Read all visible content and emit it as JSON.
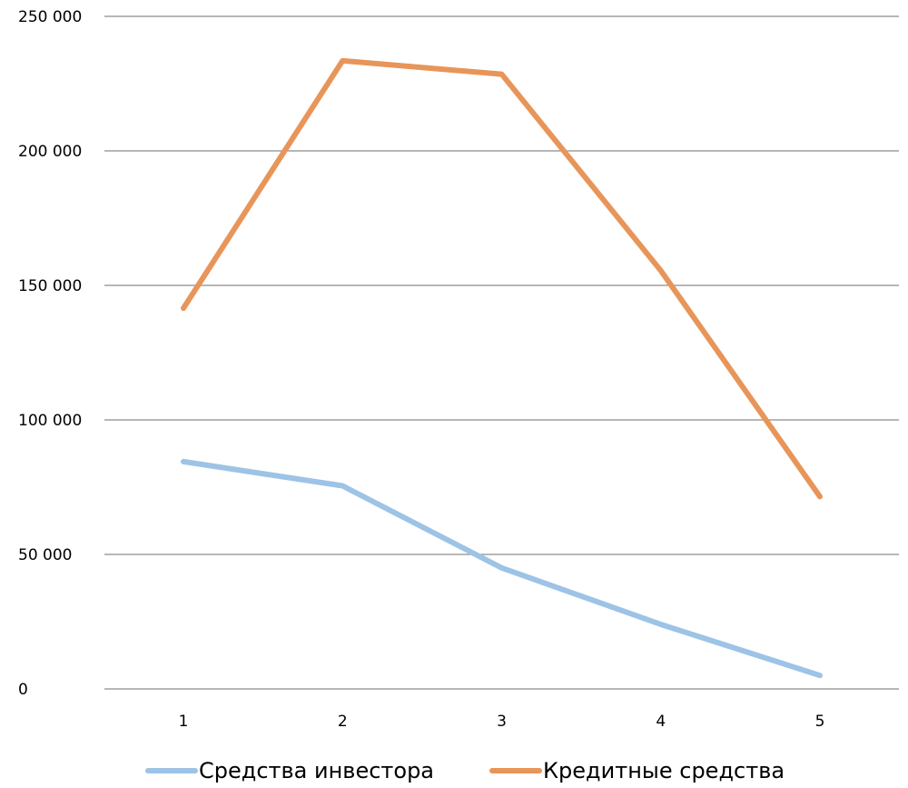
{
  "chart_data": {
    "type": "line",
    "title": "",
    "xlabel": "",
    "ylabel": "",
    "categories": [
      "1",
      "2",
      "3",
      "4",
      "5"
    ],
    "ylim": [
      0,
      250000
    ],
    "y_ticks": [
      0,
      50000,
      100000,
      150000,
      200000,
      250000
    ],
    "y_tick_labels": [
      "0",
      "50 000",
      "100 000",
      "150 000",
      "200 000",
      "250 000"
    ],
    "grid": "horizontal",
    "legend_position": "bottom",
    "series": [
      {
        "name": "Средства инвестора",
        "color": "#9dc3e6",
        "values": [
          84500,
          75500,
          45000,
          24000,
          5000
        ]
      },
      {
        "name": "Кредитные средства",
        "color": "#e8955a",
        "values": [
          141500,
          233500,
          228500,
          155500,
          71500
        ]
      }
    ],
    "grid_color": "#8c8c8c"
  }
}
